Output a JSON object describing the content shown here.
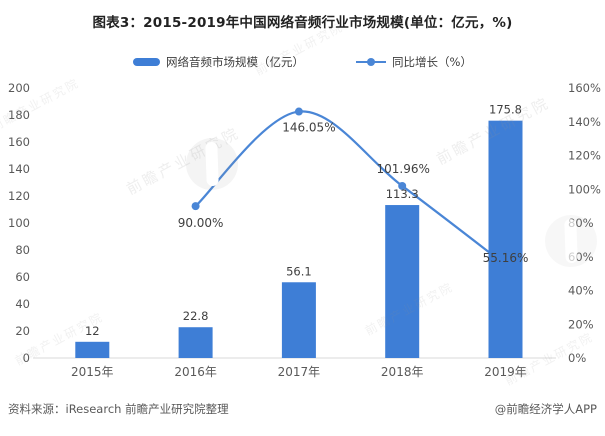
{
  "page": {
    "title": "图表3：2015-2019年中国网络音频行业市场规模(单位：亿元，%)"
  },
  "legend": {
    "items": [
      {
        "label": "网络音频市场规模（亿元）",
        "marker": "bar-swatch"
      },
      {
        "label": "同比增长（%）",
        "marker": "line-dot-swatch"
      }
    ]
  },
  "chart_data": {
    "type": "combo",
    "title": "图表3：2015-2019年中国网络音频行业市场规模(单位：亿元，%)",
    "categories": [
      "2015年",
      "2016年",
      "2017年",
      "2018年",
      "2019年"
    ],
    "series": [
      {
        "name": "网络音频市场规模（亿元）",
        "type": "bar",
        "axis": "left",
        "values": [
          12,
          22.8,
          56.1,
          113.3,
          175.8
        ],
        "value_labels": [
          "12",
          "22.8",
          "56.1",
          "113.3",
          "175.8"
        ],
        "color": "#3E7ED6"
      },
      {
        "name": "同比增长（%）",
        "type": "line",
        "axis": "right",
        "x_indices": [
          1,
          2,
          3,
          4
        ],
        "values": [
          90.0,
          146.05,
          101.96,
          55.16
        ],
        "value_labels": [
          "90.00%",
          "146.05%",
          "101.96%",
          "55.16%"
        ],
        "color": "#4A86D6"
      }
    ],
    "left_axis": {
      "min": 0,
      "max": 200,
      "step": 20,
      "tick_labels": [
        "0",
        "20",
        "40",
        "60",
        "80",
        "100",
        "120",
        "140",
        "160",
        "180",
        "200"
      ]
    },
    "right_axis": {
      "min": 0,
      "max": 160,
      "step": 20,
      "tick_labels": [
        "0%",
        "20%",
        "40%",
        "60%",
        "80%",
        "100%",
        "120%",
        "140%",
        "160%"
      ]
    },
    "grid": false,
    "legend_position": "top"
  },
  "footer": {
    "source": "资料来源：iResearch 前瞻产业研究院整理",
    "credit": "@前瞻经济学人APP"
  },
  "watermark": {
    "text": "前瞻产业研究院",
    "short": "前瞻网"
  }
}
